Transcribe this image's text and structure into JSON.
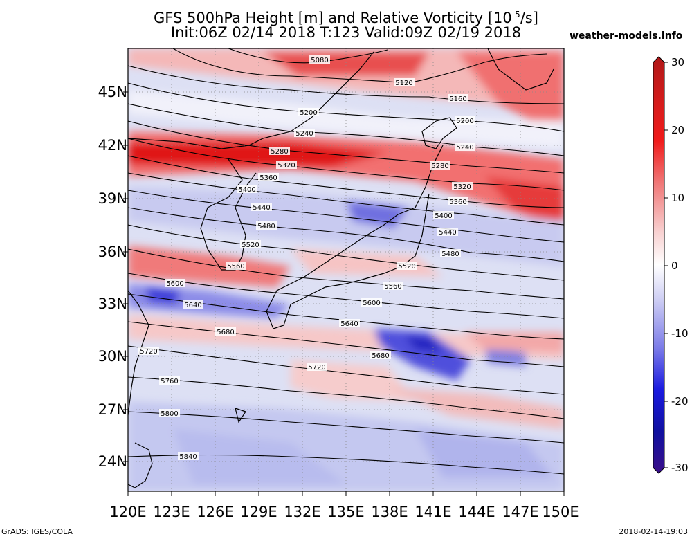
{
  "title": {
    "line1": "GFS 500hPa Height [m] and Relative Vorticity [10",
    "line1_sup": "-5",
    "line1_end": "/s]",
    "line2": "Init:06Z 02/14 2018 T:123 Valid:09Z 02/19 2018"
  },
  "site": "weather-models.info",
  "footer": {
    "left": "GrADS: IGES/COLA",
    "right": "2018-02-14-19:03"
  },
  "lat_labels": [
    "45N",
    "42N",
    "39N",
    "36N",
    "33N",
    "30N",
    "27N",
    "24N"
  ],
  "lon_labels": [
    "120E",
    "123E",
    "126E",
    "129E",
    "132E",
    "135E",
    "138E",
    "141E",
    "144E",
    "147E",
    "150E"
  ],
  "colorbar": {
    "ticks": [
      "30",
      "20",
      "10",
      "0",
      "-10",
      "-20",
      "-30"
    ],
    "colors": [
      "#3b0f8a",
      "#1a1aa8",
      "#3a3ad8",
      "#7b7be8",
      "#b4b4f0",
      "#e4e4f8",
      "#ffffff",
      "#f8e0e0",
      "#f5b0b0",
      "#f07575",
      "#e63b3b",
      "#d81c1c",
      "#b01818"
    ]
  },
  "contour_labels": [
    "5080",
    "5120",
    "5160",
    "5200",
    "5200",
    "5240",
    "5240",
    "5280",
    "5280",
    "5320",
    "5320",
    "5360",
    "5360",
    "5400",
    "5400",
    "5440",
    "5440",
    "5480",
    "5480",
    "5520",
    "5520",
    "5560",
    "5560",
    "5600",
    "5600",
    "5640",
    "5640",
    "5680",
    "5680",
    "5720",
    "5720",
    "5760",
    "5800",
    "5840"
  ]
}
